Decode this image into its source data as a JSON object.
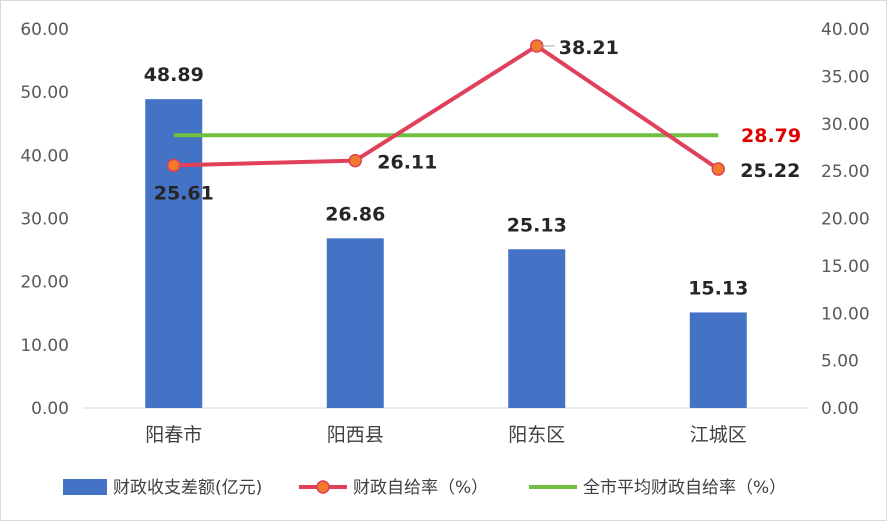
{
  "chart_data": {
    "type": "bar+line",
    "categories": [
      "阳春市",
      "阳西县",
      "阳东区",
      "江城区"
    ],
    "series": [
      {
        "name": "财政收支差额(亿元)",
        "kind": "bar",
        "axis": "left",
        "color": "#4472C4",
        "values": [
          48.89,
          26.86,
          25.13,
          15.13
        ],
        "labels": [
          "48.89",
          "26.86",
          "25.13",
          "15.13"
        ]
      },
      {
        "name": "财政自给率（%）",
        "kind": "line",
        "axis": "right",
        "color": "#E0405A",
        "marker_fill": "#F07B2A",
        "values": [
          25.61,
          26.11,
          38.21,
          25.22
        ],
        "labels": [
          "25.61",
          "26.11",
          "38.21",
          "25.22"
        ]
      },
      {
        "name": "全市平均财政自给率（%）",
        "kind": "line",
        "axis": "right",
        "color": "#70BF41",
        "values": [
          28.79,
          28.79,
          28.79,
          28.79
        ],
        "label": "28.79",
        "label_color": "#E00000"
      }
    ],
    "y_left": {
      "lim": [
        0,
        60
      ],
      "ticks": [
        "0.00",
        "10.00",
        "20.00",
        "30.00",
        "40.00",
        "50.00",
        "60.00"
      ]
    },
    "y_right": {
      "lim": [
        0,
        40
      ],
      "ticks": [
        "0.00",
        "5.00",
        "10.00",
        "15.00",
        "20.00",
        "25.00",
        "30.00",
        "35.00",
        "40.00"
      ]
    },
    "grid": false,
    "legend_position": "bottom"
  }
}
